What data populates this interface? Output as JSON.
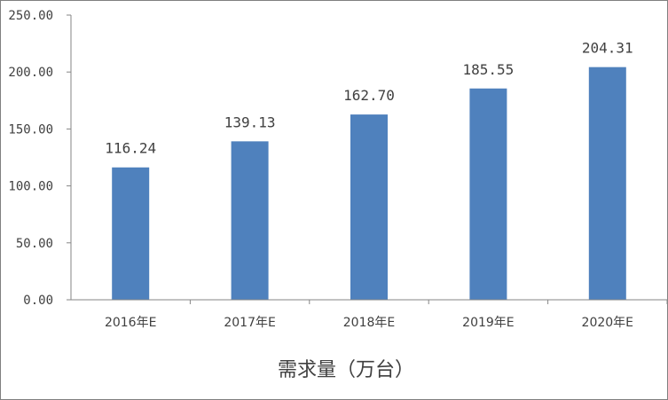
{
  "chart_data": {
    "type": "bar",
    "categories": [
      "2016年E",
      "2017年E",
      "2018年E",
      "2019年E",
      "2020年E"
    ],
    "values": [
      116.24,
      139.13,
      162.7,
      185.55,
      204.31
    ],
    "value_labels": [
      "116.24",
      "139.13",
      "162.70",
      "185.55",
      "204.31"
    ],
    "y_ticks": [
      "0.00",
      "50.00",
      "100.00",
      "150.00",
      "200.00",
      "250.00"
    ],
    "ylim": [
      0,
      250
    ],
    "xlabel": "需求量（万台）",
    "title": "",
    "grid": false,
    "bar_color": "#4f81bd"
  }
}
